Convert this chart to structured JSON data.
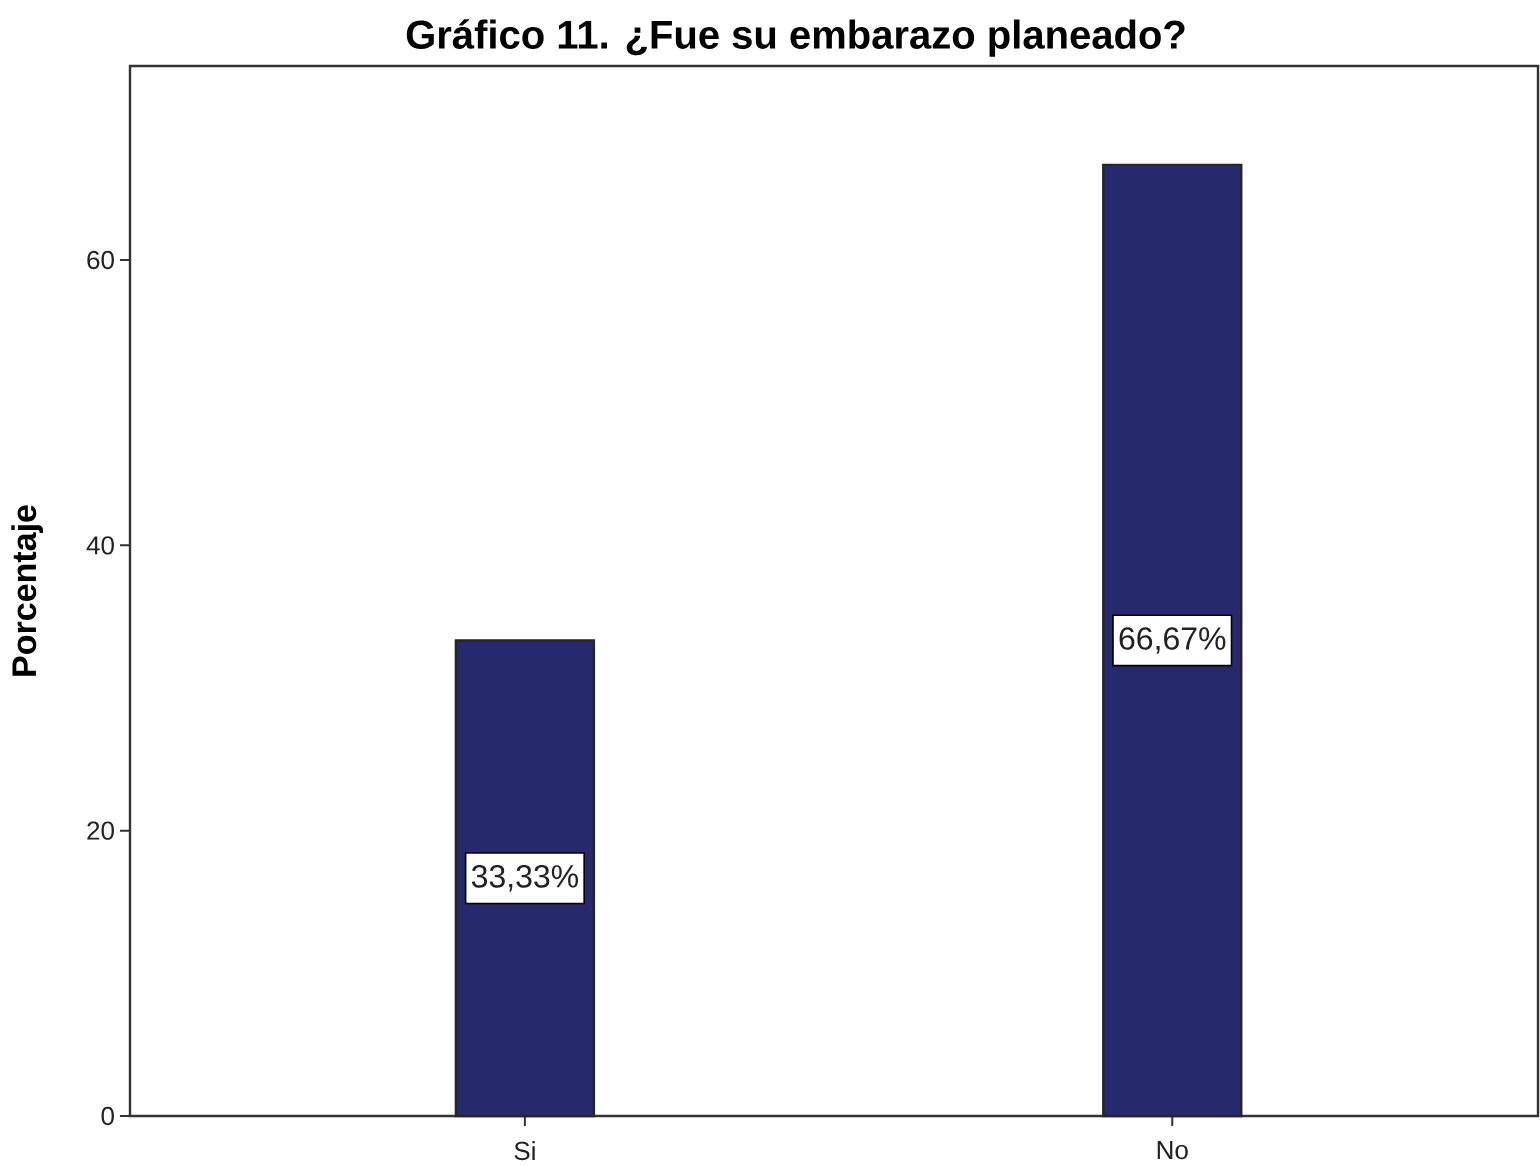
{
  "chart_data": {
    "type": "bar",
    "title": "Gráfico 11. ¿Fue su embarazo planeado?",
    "ylabel": "Porcentaje",
    "categories": [
      "Si",
      "No"
    ],
    "values": [
      33.33,
      66.67
    ],
    "color": "#27296e",
    "value_labels": [
      "33,33%",
      "66,67%"
    ],
    "ylim": [
      0,
      73.6
    ],
    "yticks": [
      0,
      20,
      40,
      60
    ]
  }
}
